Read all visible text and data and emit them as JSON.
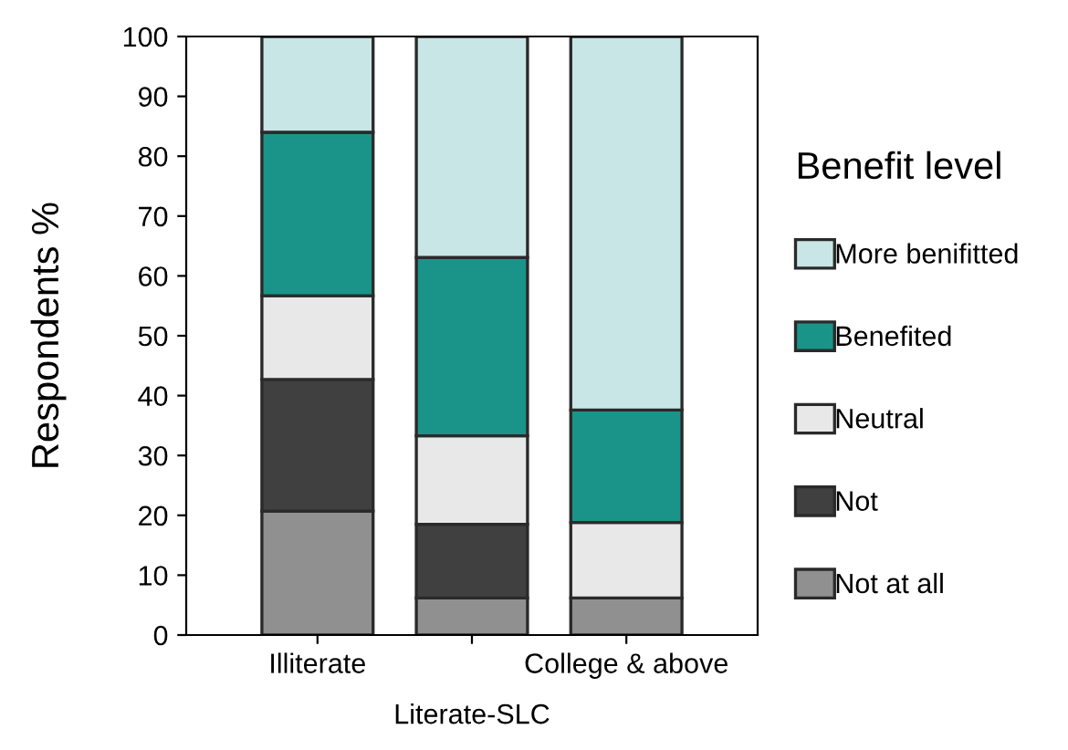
{
  "chart_data": {
    "type": "bar",
    "stacked": true,
    "ylabel": "Respondents %",
    "legend_title": "Benefit level",
    "legend": "right",
    "grid": false,
    "categories": [
      "Illiterate",
      "Literate-SLC",
      "College & above"
    ],
    "ylim": [
      0,
      100
    ],
    "yticks": [
      0,
      10,
      20,
      30,
      40,
      50,
      60,
      70,
      80,
      90,
      100
    ],
    "series": [
      {
        "name": "Not at all",
        "color": "#909090",
        "values": [
          20.7,
          6.2,
          6.2
        ]
      },
      {
        "name": "Not",
        "color": "#404040",
        "values": [
          22,
          12.3,
          0
        ]
      },
      {
        "name": "Neutral",
        "color": "#e8e8e8",
        "values": [
          14,
          14.8,
          12.6
        ]
      },
      {
        "name": "Benefited",
        "color": "#1a9488",
        "values": [
          27.3,
          29.8,
          18.8
        ]
      },
      {
        "name": "More benifitted",
        "color": "#c8e6e6",
        "values": [
          16,
          36.9,
          62.4
        ]
      }
    ]
  }
}
